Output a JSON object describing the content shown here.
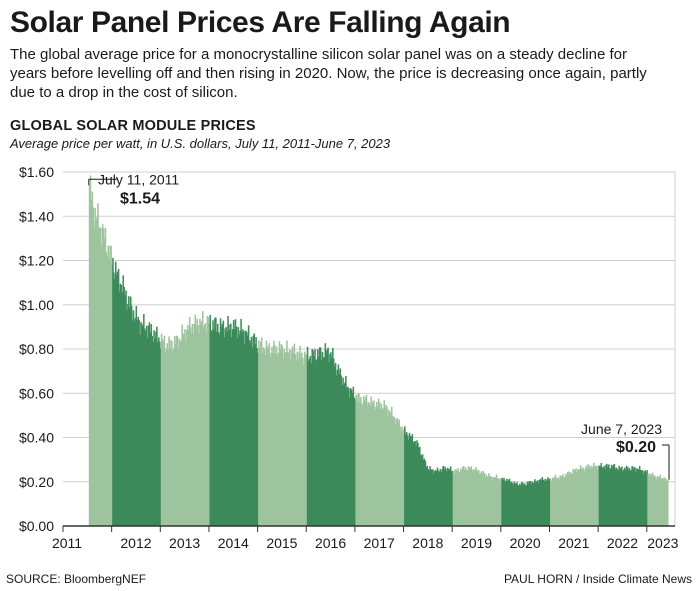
{
  "header": {
    "title": "Solar Panel Prices Are Falling Again",
    "subtitle": "The global average price for a monocrystalline silicon solar panel was on a steady decline for years before levelling off and then rising in 2020. Now, the price is decreasing once again, partly due to a drop in the cost of silicon."
  },
  "chart_data": {
    "type": "bar",
    "title": "GLOBAL SOLAR MODULE PRICES",
    "subtitle": "Average price per watt, in U.S. dollars, July 11, 2011-June 7, 2023",
    "xlabel": "",
    "ylabel": "",
    "ylim": [
      0,
      1.6
    ],
    "x_range": [
      2011.0,
      2023.58
    ],
    "y_ticks": [
      "$0.00",
      "$0.20",
      "$0.40",
      "$0.60",
      "$0.80",
      "$1.00",
      "$1.20",
      "$1.40",
      "$1.60"
    ],
    "x_tick_labels": [
      "2011",
      "2012",
      "2013",
      "2014",
      "2015",
      "2016",
      "2017",
      "2018",
      "2019",
      "2020",
      "2021",
      "2022",
      "2023"
    ],
    "grid": true,
    "colors": {
      "light": "#9ec49e",
      "dark": "#3d8a5a",
      "grid": "#cfcfcf",
      "axis": "#333333"
    },
    "series": [
      {
        "points": [
          [
            2011.53,
            1.54
          ],
          [
            2011.6,
            1.45
          ],
          [
            2011.7,
            1.38
          ],
          [
            2011.8,
            1.33
          ],
          [
            2011.9,
            1.26
          ],
          [
            2012.0,
            1.2
          ],
          [
            2012.1,
            1.13
          ],
          [
            2012.2,
            1.09
          ],
          [
            2012.3,
            1.03
          ],
          [
            2012.4,
            0.98
          ],
          [
            2012.5,
            0.94
          ],
          [
            2012.6,
            0.91
          ],
          [
            2012.7,
            0.9
          ],
          [
            2012.8,
            0.88
          ],
          [
            2012.9,
            0.86
          ],
          [
            2013.0,
            0.84
          ],
          [
            2013.1,
            0.82
          ],
          [
            2013.2,
            0.82
          ],
          [
            2013.3,
            0.83
          ],
          [
            2013.4,
            0.85
          ],
          [
            2013.5,
            0.88
          ],
          [
            2013.6,
            0.9
          ],
          [
            2013.7,
            0.91
          ],
          [
            2013.8,
            0.92
          ],
          [
            2013.9,
            0.92
          ],
          [
            2014.0,
            0.92
          ],
          [
            2014.1,
            0.91
          ],
          [
            2014.2,
            0.9
          ],
          [
            2014.3,
            0.9
          ],
          [
            2014.4,
            0.9
          ],
          [
            2014.5,
            0.9
          ],
          [
            2014.6,
            0.89
          ],
          [
            2014.7,
            0.88
          ],
          [
            2014.8,
            0.86
          ],
          [
            2014.9,
            0.84
          ],
          [
            2015.0,
            0.82
          ],
          [
            2015.1,
            0.81
          ],
          [
            2015.2,
            0.8
          ],
          [
            2015.3,
            0.8
          ],
          [
            2015.4,
            0.8
          ],
          [
            2015.5,
            0.8
          ],
          [
            2015.6,
            0.79
          ],
          [
            2015.7,
            0.79
          ],
          [
            2015.8,
            0.78
          ],
          [
            2015.9,
            0.77
          ],
          [
            2016.0,
            0.77
          ],
          [
            2016.1,
            0.77
          ],
          [
            2016.2,
            0.78
          ],
          [
            2016.3,
            0.78
          ],
          [
            2016.4,
            0.79
          ],
          [
            2016.5,
            0.78
          ],
          [
            2016.6,
            0.72
          ],
          [
            2016.7,
            0.68
          ],
          [
            2016.8,
            0.64
          ],
          [
            2016.9,
            0.61
          ],
          [
            2017.0,
            0.59
          ],
          [
            2017.1,
            0.57
          ],
          [
            2017.2,
            0.57
          ],
          [
            2017.3,
            0.56
          ],
          [
            2017.4,
            0.55
          ],
          [
            2017.5,
            0.55
          ],
          [
            2017.6,
            0.54
          ],
          [
            2017.7,
            0.52
          ],
          [
            2017.8,
            0.49
          ],
          [
            2017.9,
            0.46
          ],
          [
            2018.0,
            0.43
          ],
          [
            2018.1,
            0.41
          ],
          [
            2018.2,
            0.39
          ],
          [
            2018.3,
            0.36
          ],
          [
            2018.4,
            0.3
          ],
          [
            2018.5,
            0.26
          ],
          [
            2018.6,
            0.25
          ],
          [
            2018.7,
            0.25
          ],
          [
            2018.8,
            0.26
          ],
          [
            2018.9,
            0.26
          ],
          [
            2019.0,
            0.25
          ],
          [
            2019.1,
            0.25
          ],
          [
            2019.2,
            0.26
          ],
          [
            2019.3,
            0.26
          ],
          [
            2019.4,
            0.26
          ],
          [
            2019.5,
            0.25
          ],
          [
            2019.6,
            0.24
          ],
          [
            2019.7,
            0.23
          ],
          [
            2019.8,
            0.22
          ],
          [
            2019.9,
            0.22
          ],
          [
            2020.0,
            0.21
          ],
          [
            2020.1,
            0.21
          ],
          [
            2020.2,
            0.2
          ],
          [
            2020.3,
            0.19
          ],
          [
            2020.4,
            0.19
          ],
          [
            2020.5,
            0.19
          ],
          [
            2020.6,
            0.2
          ],
          [
            2020.7,
            0.2
          ],
          [
            2020.8,
            0.21
          ],
          [
            2020.9,
            0.21
          ],
          [
            2021.0,
            0.21
          ],
          [
            2021.1,
            0.22
          ],
          [
            2021.2,
            0.22
          ],
          [
            2021.3,
            0.23
          ],
          [
            2021.4,
            0.24
          ],
          [
            2021.5,
            0.25
          ],
          [
            2021.6,
            0.26
          ],
          [
            2021.7,
            0.26
          ],
          [
            2021.8,
            0.27
          ],
          [
            2021.9,
            0.27
          ],
          [
            2022.0,
            0.27
          ],
          [
            2022.1,
            0.27
          ],
          [
            2022.2,
            0.27
          ],
          [
            2022.3,
            0.27
          ],
          [
            2022.4,
            0.26
          ],
          [
            2022.5,
            0.26
          ],
          [
            2022.6,
            0.26
          ],
          [
            2022.7,
            0.26
          ],
          [
            2022.8,
            0.26
          ],
          [
            2022.9,
            0.25
          ],
          [
            2023.0,
            0.24
          ],
          [
            2023.1,
            0.23
          ],
          [
            2023.2,
            0.22
          ],
          [
            2023.3,
            0.22
          ],
          [
            2023.43,
            0.2
          ]
        ]
      }
    ],
    "annotations": [
      {
        "date": "July 11, 2011",
        "value": "$1.54",
        "x": 2011.53,
        "y": 1.54,
        "side": "left"
      },
      {
        "date": "June 7, 2023",
        "value": "$0.20",
        "x": 2023.43,
        "y": 0.2,
        "side": "right"
      }
    ]
  },
  "footer": {
    "source": "SOURCE: BloombergNEF",
    "credit": "PAUL HORN / Inside Climate News"
  }
}
